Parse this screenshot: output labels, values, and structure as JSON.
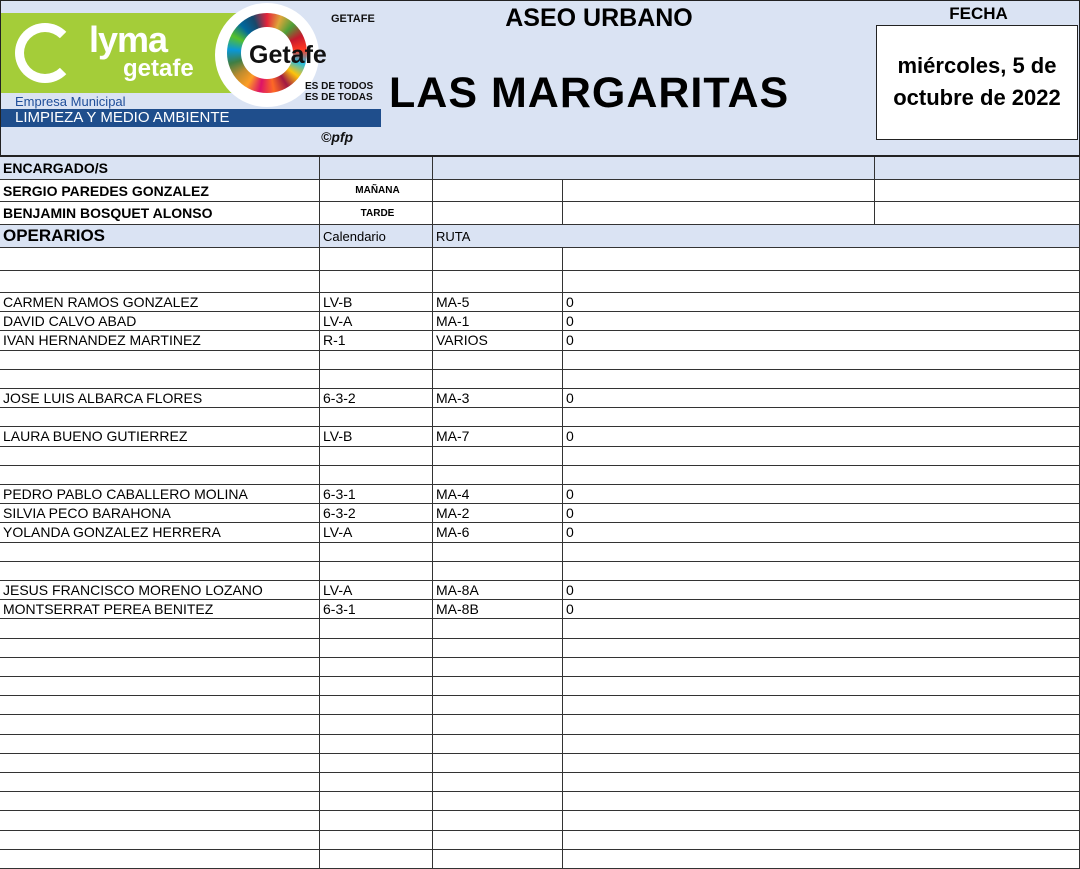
{
  "header": {
    "logo_text": "lyma getafe",
    "logo_sub": "Empresa Municipal",
    "logo_band": "LIMPIEZA Y MEDIO AMBIENTE",
    "getafe_logo": "Getafe",
    "ayuntamiento": "GETAFE",
    "slogan1": "ES DE TODOS",
    "slogan2": "ES DE TODAS",
    "credit": "©pfp",
    "title": "ASEO URBANO",
    "location": "LAS MARGARITAS",
    "date_label": "FECHA",
    "date_value": "miércoles, 5 de octubre de 2022"
  },
  "encargados": {
    "label": "ENCARGADO/S",
    "rows": [
      {
        "name": "SERGIO PAREDES GONZALEZ",
        "shift": "MAÑANA"
      },
      {
        "name": "BENJAMIN BOSQUET ALONSO",
        "shift": "TARDE"
      }
    ]
  },
  "operarios": {
    "label": "OPERARIOS",
    "col_calendar": "Calendario",
    "col_route": "RUTA",
    "rows": [
      {},
      {},
      {
        "name": "CARMEN RAMOS GONZALEZ",
        "cal": "LV-B",
        "ruta": "MA-5",
        "val": "0"
      },
      {
        "name": "DAVID CALVO ABAD",
        "cal": "LV-A",
        "ruta": "MA-1",
        "val": "0"
      },
      {
        "name": "IVAN HERNANDEZ MARTINEZ",
        "cal": "R-1",
        "ruta": "VARIOS",
        "val": "0"
      },
      {},
      {},
      {
        "name": "JOSE LUIS ALBARCA FLORES",
        "cal": "6-3-2",
        "ruta": "MA-3",
        "val": "0"
      },
      {},
      {
        "name": "LAURA BUENO GUTIERREZ",
        "cal": "LV-B",
        "ruta": "MA-7",
        "val": "0"
      },
      {},
      {},
      {
        "name": "PEDRO PABLO CABALLERO MOLINA",
        "cal": "6-3-1",
        "ruta": "MA-4",
        "val": "0"
      },
      {
        "name": "SILVIA PECO BARAHONA",
        "cal": "6-3-2",
        "ruta": "MA-2",
        "val": "0"
      },
      {
        "name": "YOLANDA GONZALEZ HERRERA",
        "cal": "LV-A",
        "ruta": "MA-6",
        "val": "0"
      },
      {},
      {},
      {
        "name": "JESUS FRANCISCO MORENO LOZANO",
        "cal": "LV-A",
        "ruta": "MA-8A",
        "val": "0"
      },
      {
        "name": "MONTSERRAT PEREA BENITEZ",
        "cal": "6-3-1",
        "ruta": "MA-8B",
        "val": "0"
      },
      {},
      {},
      {},
      {},
      {},
      {},
      {},
      {},
      {},
      {},
      {},
      {},
      {}
    ]
  }
}
